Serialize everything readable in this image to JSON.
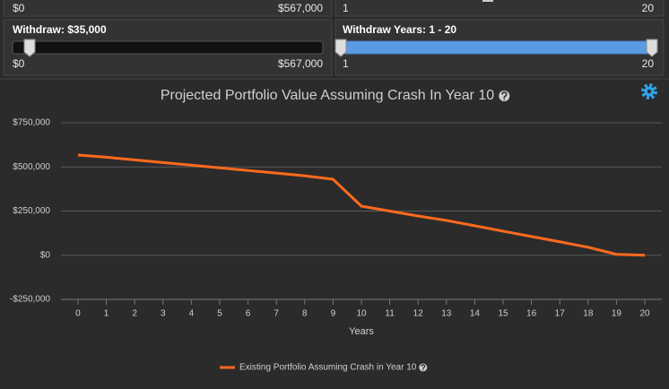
{
  "controls": {
    "top_row": {
      "min_label": "$0",
      "max_label": "$567,000",
      "years_min": "1",
      "years_max": "20"
    },
    "withdraw": {
      "label": "Withdraw:",
      "value": "$35,000",
      "min": "$0",
      "max": "$567,000"
    },
    "withdraw_years": {
      "label": "Withdraw Years:",
      "value": "1 - 20",
      "min": "1",
      "max": "20"
    }
  },
  "chart_data": {
    "type": "line",
    "title": "Projected Portfolio Value Assuming Crash In Year 10",
    "x_label": "Years",
    "x": [
      0,
      1,
      2,
      3,
      4,
      5,
      6,
      7,
      8,
      9,
      10,
      11,
      12,
      13,
      14,
      15,
      16,
      17,
      18,
      19,
      20
    ],
    "series": [
      {
        "name": "Existing Portfolio Assuming Crash in Year 10",
        "color": "#ff6a1e",
        "values": [
          567000,
          555000,
          540000,
          525000,
          510000,
          495000,
          480000,
          465000,
          450000,
          430000,
          278000,
          250000,
          222000,
          197000,
          167000,
          136000,
          106000,
          76000,
          45000,
          5000,
          0
        ]
      }
    ],
    "xlim": [
      -0.6,
      20.6
    ],
    "xticks": [
      0,
      1,
      2,
      3,
      4,
      5,
      6,
      7,
      8,
      9,
      10,
      11,
      12,
      13,
      14,
      15,
      16,
      17,
      18,
      19,
      20
    ],
    "ylim": [
      -250000,
      750000
    ],
    "yticks": [
      {
        "value": -250000,
        "label": "-$250,000"
      },
      {
        "value": 0,
        "label": "$0"
      },
      {
        "value": 250000,
        "label": "$250,000"
      },
      {
        "value": 500000,
        "label": "$500,000"
      },
      {
        "value": 750000,
        "label": "$750,000"
      }
    ],
    "grid": true,
    "legend": "bottom"
  }
}
